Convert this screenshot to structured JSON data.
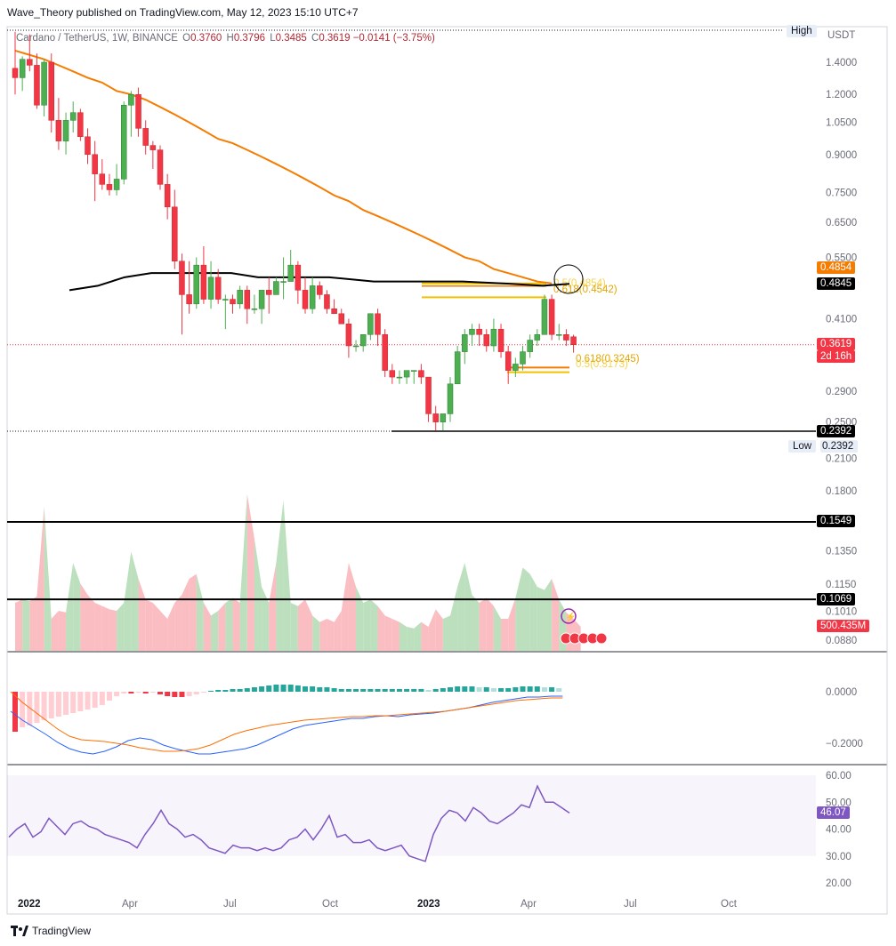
{
  "header": {
    "publisher_line": "Wave_Theory published on TradingView.com, May 12, 2023 15:10 UTC+7"
  },
  "symbol_bar": {
    "name": "Cardano / TetherUS, 1W, BINANCE",
    "o_label": "O",
    "o": "0.3760",
    "h_label": "H",
    "h": "0.3796",
    "l_label": "L",
    "l": "0.3485",
    "c_label": "C",
    "c": "0.3619",
    "change": "−0.0141 (−3.75%)"
  },
  "currency": "USDT",
  "high_label": "High",
  "low_label": "Low",
  "low_value": "0.2392",
  "price_tags": {
    "ma_orange": "0.4854",
    "ma_black": "0.4845",
    "last_price": "0.3619",
    "countdown": "2d 16h",
    "low_line": "0.2392",
    "support_line": "0.1549",
    "support_line2": "0.1069",
    "volume": "500.435M",
    "rsi": "46.07"
  },
  "fib_labels": {
    "upper_a": "0.5(0.4854)",
    "upper_b": "0.618(0.4542)",
    "lower_a": "0.618(0.3245)",
    "lower_b": "0.5(0.3173)"
  },
  "price_axis_ticks": [
    "1.4000",
    "1.2000",
    "1.0500",
    "0.9000",
    "0.7500",
    "0.6500",
    "0.5500",
    "0.4100",
    "0.2900",
    "0.2500",
    "0.2100",
    "0.1800",
    "0.1350",
    "0.1150",
    "0.1010",
    "0.0880"
  ],
  "macd_axis_ticks": [
    "0.0000",
    "−0.2000"
  ],
  "rsi_axis_ticks": [
    "60.00",
    "50.00",
    "40.00",
    "30.00",
    "20.00"
  ],
  "x_axis_ticks": [
    "2022",
    "Apr",
    "Jul",
    "Oct",
    "2023",
    "Apr",
    "Jul",
    "Oct"
  ],
  "footer": {
    "brand": "TradingView"
  },
  "colors": {
    "up": "#26a69a",
    "up_body": "#4caf50",
    "down": "#f23645",
    "ma_orange": "#f57c00",
    "ma_black": "#000000",
    "fib": "#f2c200",
    "macd": "#2962ff",
    "signal": "#ff6d00",
    "rsi": "#7e57c2"
  },
  "chart_data": [
    {
      "type": "candlestick",
      "title": "Cardano / TetherUS, 1W, BINANCE",
      "ylabel": "USDT",
      "scale": "log",
      "ylim": [
        0.08,
        1.6
      ],
      "x_ticks": [
        "2022",
        "Apr",
        "Jul",
        "Oct",
        "2023",
        "Apr",
        "Jul",
        "Oct"
      ],
      "candles": [
        [
          1.36,
          1.62,
          1.2,
          1.3
        ],
        [
          1.3,
          1.44,
          1.22,
          1.42
        ],
        [
          1.42,
          1.6,
          1.34,
          1.38
        ],
        [
          1.38,
          1.46,
          1.12,
          1.14
        ],
        [
          1.14,
          1.42,
          1.08,
          1.4
        ],
        [
          1.4,
          1.46,
          1.0,
          1.06
        ],
        [
          1.06,
          1.18,
          0.92,
          0.96
        ],
        [
          0.96,
          1.1,
          0.9,
          1.06
        ],
        [
          1.06,
          1.16,
          1.0,
          1.1
        ],
        [
          1.1,
          1.12,
          0.96,
          0.98
        ],
        [
          0.98,
          1.02,
          0.86,
          0.9
        ],
        [
          0.9,
          0.96,
          0.72,
          0.82
        ],
        [
          0.82,
          0.88,
          0.76,
          0.78
        ],
        [
          0.78,
          0.82,
          0.74,
          0.76
        ],
        [
          0.76,
          0.86,
          0.74,
          0.8
        ],
        [
          0.8,
          1.16,
          0.78,
          1.14
        ],
        [
          1.14,
          1.22,
          0.98,
          1.2
        ],
        [
          1.2,
          1.24,
          0.98,
          1.02
        ],
        [
          1.02,
          1.06,
          0.9,
          0.94
        ],
        [
          0.94,
          0.96,
          0.84,
          0.92
        ],
        [
          0.92,
          0.94,
          0.76,
          0.78
        ],
        [
          0.78,
          0.82,
          0.66,
          0.7
        ],
        [
          0.7,
          0.76,
          0.52,
          0.54
        ],
        [
          0.54,
          0.56,
          0.38,
          0.46
        ],
        [
          0.46,
          0.54,
          0.42,
          0.44
        ],
        [
          0.44,
          0.55,
          0.43,
          0.53
        ],
        [
          0.53,
          0.58,
          0.44,
          0.45
        ],
        [
          0.45,
          0.54,
          0.43,
          0.5
        ],
        [
          0.5,
          0.52,
          0.44,
          0.45
        ],
        [
          0.45,
          0.46,
          0.39,
          0.45
        ],
        [
          0.45,
          0.46,
          0.42,
          0.44
        ],
        [
          0.44,
          0.48,
          0.43,
          0.47
        ],
        [
          0.47,
          0.48,
          0.4,
          0.43
        ],
        [
          0.43,
          0.46,
          0.42,
          0.43
        ],
        [
          0.43,
          0.46,
          0.4,
          0.47
        ],
        [
          0.47,
          0.5,
          0.42,
          0.46
        ],
        [
          0.46,
          0.5,
          0.46,
          0.49
        ],
        [
          0.49,
          0.55,
          0.45,
          0.49
        ],
        [
          0.49,
          0.57,
          0.49,
          0.53
        ],
        [
          0.53,
          0.54,
          0.44,
          0.47
        ],
        [
          0.47,
          0.5,
          0.42,
          0.43
        ],
        [
          0.43,
          0.5,
          0.42,
          0.48
        ],
        [
          0.48,
          0.49,
          0.45,
          0.46
        ],
        [
          0.46,
          0.47,
          0.42,
          0.43
        ],
        [
          0.43,
          0.45,
          0.42,
          0.42
        ],
        [
          0.42,
          0.43,
          0.4,
          0.4
        ],
        [
          0.4,
          0.41,
          0.34,
          0.36
        ],
        [
          0.36,
          0.37,
          0.35,
          0.36
        ],
        [
          0.36,
          0.38,
          0.35,
          0.38
        ],
        [
          0.38,
          0.42,
          0.37,
          0.42
        ],
        [
          0.42,
          0.43,
          0.36,
          0.38
        ],
        [
          0.38,
          0.39,
          0.31,
          0.32
        ],
        [
          0.32,
          0.33,
          0.3,
          0.31
        ],
        [
          0.31,
          0.32,
          0.3,
          0.31
        ],
        [
          0.31,
          0.32,
          0.3,
          0.32
        ],
        [
          0.32,
          0.32,
          0.3,
          0.32
        ],
        [
          0.32,
          0.33,
          0.3,
          0.31
        ],
        [
          0.31,
          0.31,
          0.25,
          0.26
        ],
        [
          0.26,
          0.27,
          0.24,
          0.25
        ],
        [
          0.25,
          0.26,
          0.24,
          0.26
        ],
        [
          0.26,
          0.31,
          0.25,
          0.3
        ],
        [
          0.3,
          0.36,
          0.3,
          0.35
        ],
        [
          0.35,
          0.39,
          0.33,
          0.38
        ],
        [
          0.38,
          0.4,
          0.36,
          0.39
        ],
        [
          0.39,
          0.4,
          0.36,
          0.38
        ],
        [
          0.38,
          0.39,
          0.35,
          0.36
        ],
        [
          0.36,
          0.41,
          0.35,
          0.39
        ],
        [
          0.39,
          0.4,
          0.34,
          0.35
        ],
        [
          0.35,
          0.36,
          0.3,
          0.32
        ],
        [
          0.32,
          0.34,
          0.31,
          0.33
        ],
        [
          0.33,
          0.36,
          0.32,
          0.35
        ],
        [
          0.35,
          0.38,
          0.34,
          0.37
        ],
        [
          0.37,
          0.39,
          0.36,
          0.38
        ],
        [
          0.38,
          0.46,
          0.38,
          0.45
        ],
        [
          0.45,
          0.46,
          0.37,
          0.38
        ],
        [
          0.38,
          0.4,
          0.37,
          0.38
        ],
        [
          0.38,
          0.39,
          0.36,
          0.37
        ],
        [
          0.376,
          0.3796,
          0.3485,
          0.3619
        ]
      ],
      "ma_orange": [
        1.48,
        1.45,
        1.42,
        1.38,
        1.34,
        1.3,
        1.27,
        1.22,
        1.2,
        1.17,
        1.13,
        1.09,
        1.05,
        1.01,
        0.97,
        0.95,
        0.92,
        0.89,
        0.86,
        0.83,
        0.8,
        0.77,
        0.74,
        0.72,
        0.69,
        0.67,
        0.65,
        0.63,
        0.61,
        0.59,
        0.57,
        0.55,
        0.54,
        0.52,
        0.51,
        0.5,
        0.49,
        0.4854
      ],
      "ma_black": [
        0.47,
        0.48,
        0.5,
        0.51,
        0.51,
        0.51,
        0.51,
        0.5,
        0.5,
        0.5,
        0.49,
        0.49,
        0.49,
        0.485,
        0.48,
        0.4845
      ],
      "fib_levels": [
        0.4854,
        0.4542,
        0.3245,
        0.3173
      ],
      "horizontal_lines": [
        0.2392,
        0.1549,
        0.1069
      ]
    },
    {
      "type": "area",
      "title": "Volume",
      "last": "500.435M"
    },
    {
      "type": "line",
      "title": "MACD",
      "y_ticks": [
        "0.0000",
        "−0.2000"
      ]
    },
    {
      "type": "line",
      "title": "RSI",
      "ylim": [
        20,
        60
      ],
      "last": 46.07,
      "values": [
        37,
        40,
        42,
        37,
        39,
        44,
        41,
        38,
        42,
        43,
        41,
        40,
        38,
        37,
        36,
        35,
        33,
        38,
        42,
        47,
        42,
        40,
        37,
        38,
        36,
        33,
        32,
        31,
        34,
        33,
        33,
        32,
        33,
        32,
        33,
        36,
        37,
        40,
        36,
        40,
        45,
        37,
        38,
        35,
        35,
        36,
        33,
        32,
        33,
        34,
        30,
        29,
        28,
        38,
        44,
        47,
        46,
        43,
        48,
        46,
        43,
        42,
        44,
        46,
        49,
        48,
        56,
        50,
        50,
        48,
        46
      ]
    }
  ]
}
